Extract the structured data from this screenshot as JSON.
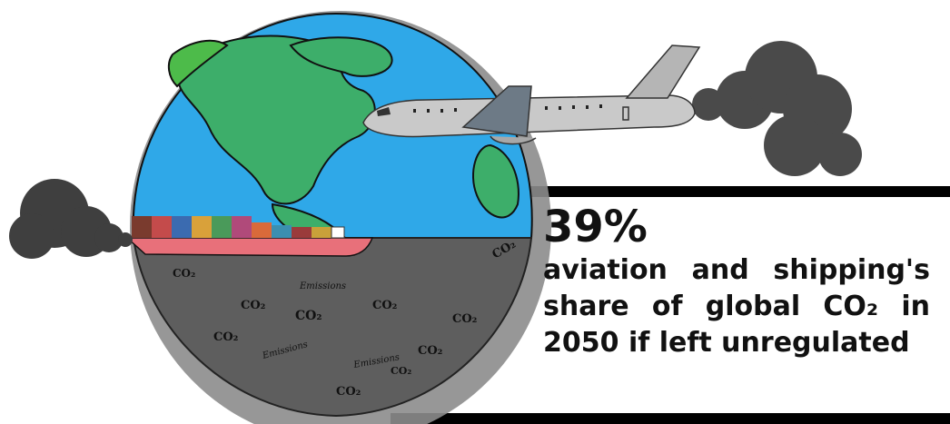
{
  "colors": {
    "ocean": "#2fa8e8",
    "land": "#3dae6a",
    "emissions_ground": "#5e5e5e",
    "smoke": "#3f3f3f",
    "airplane_body": "#c9c9c9",
    "ship_hull": "#e8707a",
    "text": "#111111"
  },
  "infographic": {
    "stat": "39%",
    "line1": [
      "aviation",
      "and",
      "shipping's"
    ],
    "line2": [
      "share",
      "of",
      "global",
      "CO₂",
      "in"
    ],
    "line3": "2050 if left unregulated"
  },
  "illustration": {
    "icons": [
      "globe-icon",
      "airplane-icon",
      "cargo-ship-icon",
      "smoke-icon"
    ],
    "ground_labels": {
      "co2": "CO₂",
      "emissions": "Emissions"
    }
  }
}
